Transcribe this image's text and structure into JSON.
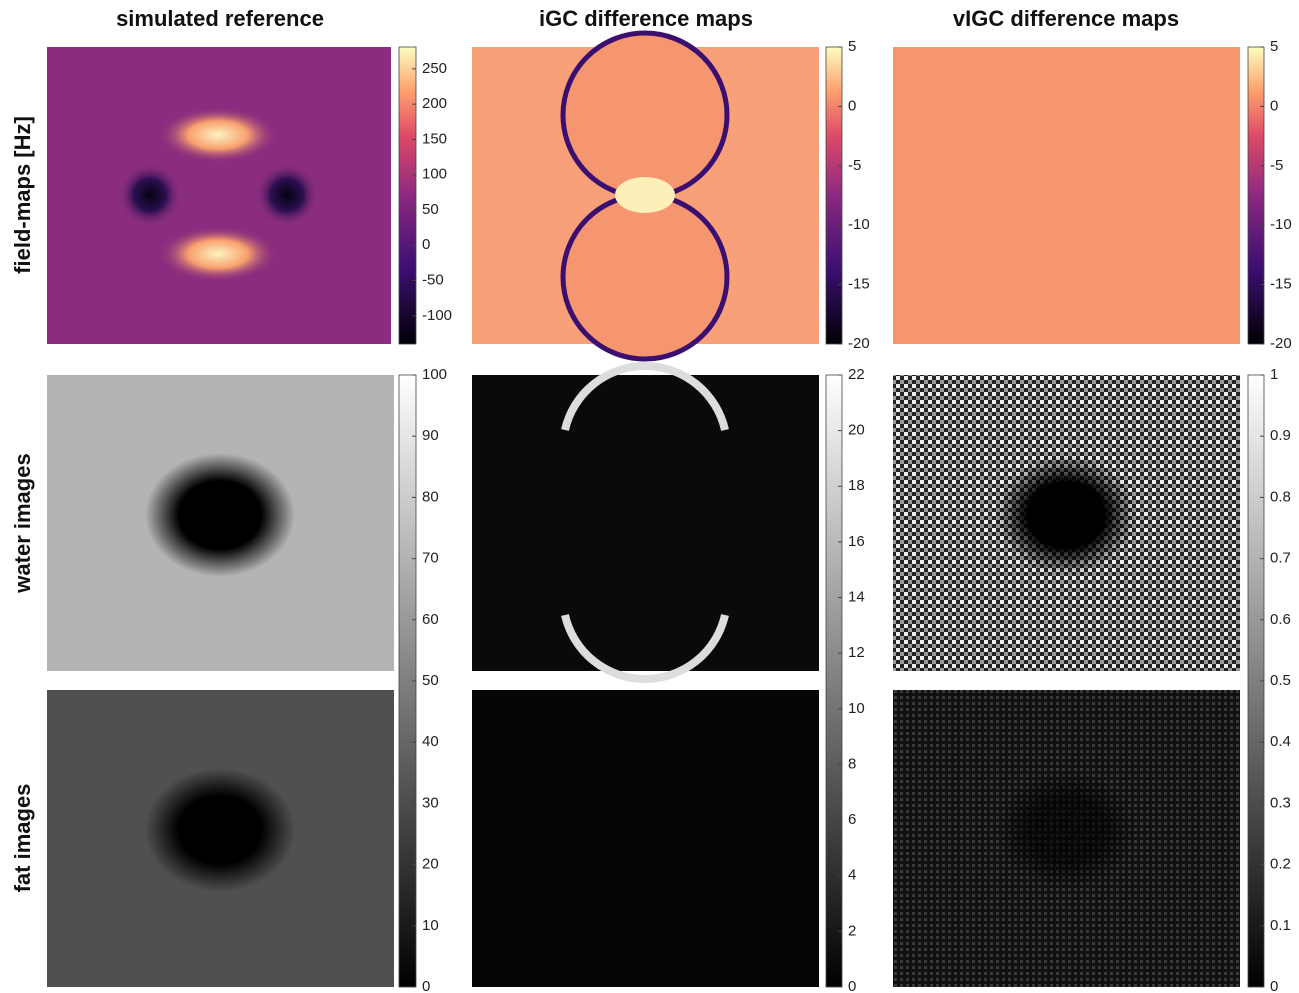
{
  "columns": [
    "simulated reference",
    "iGC difference maps",
    "vIGC difference maps"
  ],
  "rows": [
    "field-maps [Hz]",
    "water images",
    "fat images"
  ],
  "colorbars": [
    {
      "colormap": "magma",
      "lim": [
        -140,
        281
      ],
      "ticks": [
        -100,
        -50,
        0,
        50,
        100,
        150,
        200,
        250
      ]
    },
    {
      "colormap": "magma",
      "lim": [
        -20,
        5
      ],
      "ticks": [
        -20,
        -15,
        -10,
        -5,
        0,
        5
      ]
    },
    {
      "colormap": "magma",
      "lim": [
        -20,
        5
      ],
      "ticks": [
        -20,
        -15,
        -10,
        -5,
        0,
        5
      ]
    },
    {
      "colormap": "gray",
      "lim": [
        0,
        100
      ],
      "ticks": [
        0,
        10,
        20,
        30,
        40,
        50,
        60,
        70,
        80,
        90,
        100
      ]
    },
    {
      "colormap": "gray",
      "lim": [
        0,
        22
      ],
      "ticks": [
        0,
        2,
        4,
        6,
        8,
        10,
        12,
        14,
        16,
        18,
        20,
        22
      ]
    },
    {
      "colormap": "gray",
      "lim": [
        0,
        1
      ],
      "ticks": [
        0,
        0.1,
        0.2,
        0.3,
        0.4,
        0.5,
        0.6,
        0.7,
        0.8,
        0.9,
        1
      ]
    }
  ]
}
